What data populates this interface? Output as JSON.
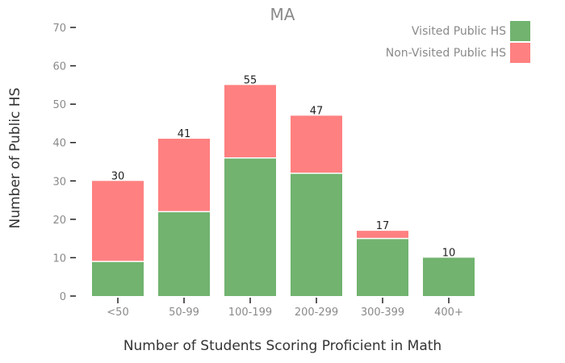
{
  "chart_data": {
    "type": "bar",
    "stacked": true,
    "title": "MA",
    "xlabel": "Number of Students Scoring Proficient in Math",
    "ylabel": "Number of Public HS",
    "categories": [
      "<50",
      "50-99",
      "100-199",
      "200-299",
      "300-399",
      "400+"
    ],
    "series": [
      {
        "name": "Visited Public HS",
        "values": [
          9,
          22,
          36,
          32,
          15,
          10
        ],
        "color": "#71b36f"
      },
      {
        "name": "Non-Visited Public HS",
        "values": [
          21,
          19,
          19,
          15,
          2,
          0
        ],
        "color": "#ff8080"
      }
    ],
    "totals": [
      30,
      41,
      55,
      47,
      17,
      10
    ],
    "ylim": [
      0,
      70
    ],
    "yticks": [
      0,
      10,
      20,
      30,
      40,
      50,
      60,
      70
    ],
    "grid": false,
    "legend_position": "top-right"
  }
}
